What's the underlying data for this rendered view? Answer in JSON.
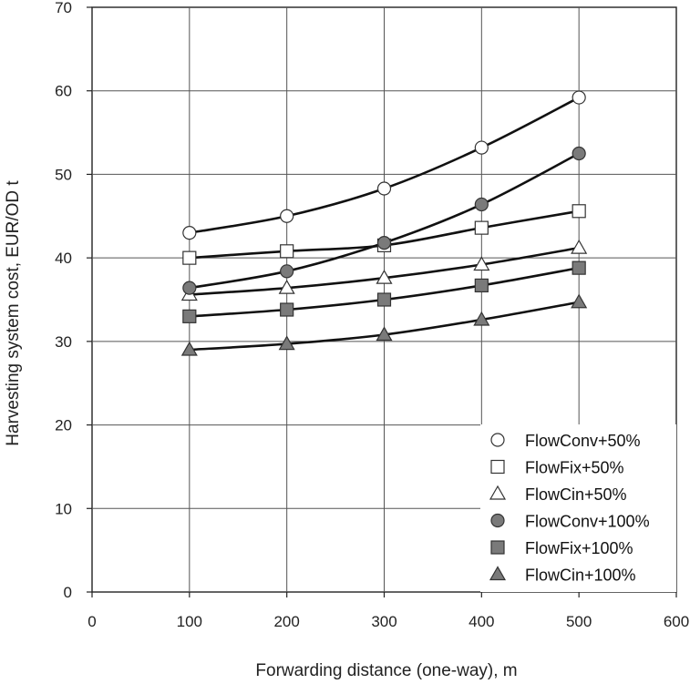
{
  "chart_data": {
    "type": "line",
    "title": "",
    "xlabel": "Forwarding distance (one-way), m",
    "ylabel": "Harvesting system cost, EUR/OD t",
    "xlim": [
      0,
      600
    ],
    "ylim": [
      0,
      70
    ],
    "xticks": [
      0,
      100,
      200,
      300,
      400,
      500,
      600
    ],
    "yticks": [
      0,
      10,
      20,
      30,
      40,
      50,
      60,
      70
    ],
    "grid": true,
    "legend_position": "bottom-right",
    "x": [
      100,
      200,
      300,
      400,
      500
    ],
    "series": [
      {
        "name": "FlowConv+50%",
        "marker": "circle",
        "fill": "#ffffff",
        "values": [
          43.0,
          45.0,
          48.3,
          53.2,
          59.2
        ]
      },
      {
        "name": "FlowFix+50%",
        "marker": "square",
        "fill": "#ffffff",
        "values": [
          40.0,
          40.8,
          41.5,
          43.6,
          45.6
        ]
      },
      {
        "name": "FlowCin+50%",
        "marker": "triangle",
        "fill": "#ffffff",
        "values": [
          35.6,
          36.4,
          37.6,
          39.2,
          41.2
        ]
      },
      {
        "name": "FlowConv+100%",
        "marker": "circle",
        "fill": "#7a7a7a",
        "values": [
          36.4,
          38.4,
          41.8,
          46.4,
          52.5
        ]
      },
      {
        "name": "FlowFix+100%",
        "marker": "square",
        "fill": "#7a7a7a",
        "values": [
          33.0,
          33.8,
          35.0,
          36.7,
          38.8
        ]
      },
      {
        "name": "FlowCin+100%",
        "marker": "triangle",
        "fill": "#7a7a7a",
        "values": [
          29.0,
          29.7,
          30.8,
          32.6,
          34.7
        ]
      }
    ],
    "colors": {
      "line": "#111111",
      "grid": "#555555",
      "marker_stroke": "#333333",
      "open_fill": "#ffffff",
      "filled_fill": "#7a7a7a"
    }
  }
}
